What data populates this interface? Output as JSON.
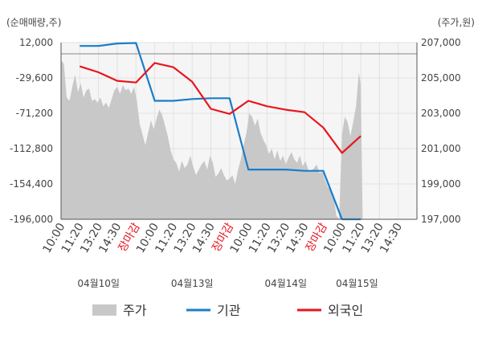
{
  "chart_data": {
    "type": "line",
    "left_axis": {
      "unit_label": "(순매매량,주)",
      "ticks": [
        12000,
        -29600,
        -71200,
        -112800,
        -154400,
        -196000
      ],
      "tick_labels": [
        "12,000",
        "-29,600",
        "-71,200",
        "-112,800",
        "-154,400",
        "-196,000"
      ],
      "range": [
        -196000,
        12000
      ]
    },
    "right_axis": {
      "unit_label": "(주가,원)",
      "ticks": [
        207000,
        205000,
        203000,
        201000,
        199000,
        197000
      ],
      "tick_labels": [
        "207,000",
        "205,000",
        "203,000",
        "201,000",
        "199,000",
        "197,000"
      ],
      "range": [
        197000,
        207000
      ]
    },
    "x_tick_labels": [
      {
        "text": "10:00",
        "pos": 0,
        "closing": false
      },
      {
        "text": "11:20",
        "pos": 1,
        "closing": false
      },
      {
        "text": "13:20",
        "pos": 2,
        "closing": false
      },
      {
        "text": "14:30",
        "pos": 3,
        "closing": false
      },
      {
        "text": "장마감",
        "pos": 4,
        "closing": true
      },
      {
        "text": "10:00",
        "pos": 5,
        "closing": false
      },
      {
        "text": "11:20",
        "pos": 6,
        "closing": false
      },
      {
        "text": "13:20",
        "pos": 7,
        "closing": false
      },
      {
        "text": "14:30",
        "pos": 8,
        "closing": false
      },
      {
        "text": "장마감",
        "pos": 9,
        "closing": true
      },
      {
        "text": "10:00",
        "pos": 10,
        "closing": false
      },
      {
        "text": "11:20",
        "pos": 11,
        "closing": false
      },
      {
        "text": "13:20",
        "pos": 12,
        "closing": false
      },
      {
        "text": "14:30",
        "pos": 13,
        "closing": false
      },
      {
        "text": "장마감",
        "pos": 14,
        "closing": true
      },
      {
        "text": "10:00",
        "pos": 15,
        "closing": false
      },
      {
        "text": "11:20",
        "pos": 16,
        "closing": false
      },
      {
        "text": "13:20",
        "pos": 17,
        "closing": false
      },
      {
        "text": "14:30",
        "pos": 18,
        "closing": false
      }
    ],
    "date_labels": [
      {
        "text": "04월10일",
        "pos": 2
      },
      {
        "text": "04월13일",
        "pos": 7
      },
      {
        "text": "04월14일",
        "pos": 12
      },
      {
        "text": "04월15일",
        "pos": 15.8
      }
    ],
    "series": [
      {
        "name": "기관",
        "axis": "left",
        "color": "#1a7dc9",
        "points": [
          [
            1,
            8000
          ],
          [
            2,
            8000
          ],
          [
            3,
            11000
          ],
          [
            4,
            11500
          ],
          [
            5,
            -56500
          ],
          [
            6,
            -56500
          ],
          [
            7,
            -54500
          ],
          [
            8,
            -53500
          ],
          [
            9,
            -53500
          ],
          [
            10,
            -137500
          ],
          [
            11,
            -137500
          ],
          [
            12,
            -137500
          ],
          [
            13,
            -139000
          ],
          [
            14,
            -139000
          ],
          [
            15,
            -196000
          ],
          [
            16,
            -196000
          ]
        ]
      },
      {
        "name": "외국인",
        "axis": "left",
        "color": "#e8161e",
        "points": [
          [
            1,
            -16000
          ],
          [
            2,
            -23000
          ],
          [
            3,
            -33000
          ],
          [
            4,
            -35000
          ],
          [
            5,
            -12000
          ],
          [
            6,
            -17000
          ],
          [
            7,
            -34000
          ],
          [
            8,
            -66000
          ],
          [
            9,
            -72000
          ],
          [
            10,
            -56500
          ],
          [
            11,
            -63000
          ],
          [
            12,
            -67000
          ],
          [
            13,
            -70000
          ],
          [
            14,
            -88000
          ],
          [
            15,
            -118000
          ],
          [
            16,
            -98000
          ]
        ]
      },
      {
        "name": "주가",
        "axis": "right",
        "type": "area",
        "color": "#c8c8c8",
        "points": [
          [
            0.0,
            206000
          ],
          [
            0.15,
            205800
          ],
          [
            0.3,
            203900
          ],
          [
            0.45,
            203700
          ],
          [
            0.6,
            204500
          ],
          [
            0.75,
            205200
          ],
          [
            0.9,
            204200
          ],
          [
            1.05,
            204700
          ],
          [
            1.2,
            203900
          ],
          [
            1.35,
            204300
          ],
          [
            1.5,
            204400
          ],
          [
            1.65,
            203700
          ],
          [
            1.8,
            203800
          ],
          [
            1.95,
            203600
          ],
          [
            2.1,
            203900
          ],
          [
            2.25,
            203400
          ],
          [
            2.4,
            203600
          ],
          [
            2.55,
            203300
          ],
          [
            2.7,
            203800
          ],
          [
            2.85,
            204300
          ],
          [
            3.0,
            204500
          ],
          [
            3.15,
            204100
          ],
          [
            3.3,
            204600
          ],
          [
            3.45,
            204300
          ],
          [
            3.6,
            204400
          ],
          [
            3.75,
            204100
          ],
          [
            3.9,
            204500
          ],
          [
            4.05,
            203700
          ],
          [
            4.2,
            202400
          ],
          [
            4.35,
            201800
          ],
          [
            4.5,
            201200
          ],
          [
            4.65,
            201900
          ],
          [
            4.8,
            202600
          ],
          [
            4.95,
            202100
          ],
          [
            5.1,
            202700
          ],
          [
            5.25,
            203200
          ],
          [
            5.4,
            202900
          ],
          [
            5.55,
            202300
          ],
          [
            5.7,
            201700
          ],
          [
            5.85,
            200900
          ],
          [
            6.0,
            200400
          ],
          [
            6.15,
            200200
          ],
          [
            6.3,
            199700
          ],
          [
            6.45,
            200300
          ],
          [
            6.6,
            199900
          ],
          [
            6.75,
            200100
          ],
          [
            6.9,
            200600
          ],
          [
            7.05,
            200000
          ],
          [
            7.2,
            199500
          ],
          [
            7.35,
            199800
          ],
          [
            7.5,
            200100
          ],
          [
            7.65,
            200300
          ],
          [
            7.8,
            199800
          ],
          [
            7.95,
            200600
          ],
          [
            8.1,
            200200
          ],
          [
            8.25,
            199400
          ],
          [
            8.4,
            199600
          ],
          [
            8.55,
            199900
          ],
          [
            8.7,
            199500
          ],
          [
            8.85,
            199200
          ],
          [
            9.0,
            199300
          ],
          [
            9.15,
            199500
          ],
          [
            9.3,
            199000
          ],
          [
            9.45,
            199800
          ],
          [
            9.6,
            200400
          ],
          [
            9.75,
            201200
          ],
          [
            9.9,
            201900
          ],
          [
            10.05,
            203000
          ],
          [
            10.2,
            202800
          ],
          [
            10.35,
            202300
          ],
          [
            10.5,
            202700
          ],
          [
            10.65,
            201900
          ],
          [
            10.8,
            201500
          ],
          [
            10.95,
            201200
          ],
          [
            11.1,
            200700
          ],
          [
            11.25,
            201000
          ],
          [
            11.4,
            200400
          ],
          [
            11.55,
            200900
          ],
          [
            11.7,
            200300
          ],
          [
            11.85,
            200600
          ],
          [
            12.0,
            200100
          ],
          [
            12.15,
            200500
          ],
          [
            12.3,
            200800
          ],
          [
            12.45,
            200400
          ],
          [
            12.6,
            200200
          ],
          [
            12.75,
            200600
          ],
          [
            12.9,
            200000
          ],
          [
            13.05,
            200300
          ],
          [
            13.2,
            199800
          ],
          [
            13.35,
            199700
          ],
          [
            13.5,
            199900
          ],
          [
            13.65,
            200100
          ],
          [
            13.8,
            199600
          ],
          [
            13.95,
            199700
          ],
          [
            14.1,
            199200
          ],
          [
            14.25,
            198800
          ],
          [
            14.4,
            198700
          ],
          [
            14.55,
            198400
          ],
          [
            14.7,
            197200
          ],
          [
            14.85,
            197000
          ],
          [
            15.0,
            201800
          ],
          [
            15.15,
            202800
          ],
          [
            15.3,
            202500
          ],
          [
            15.45,
            201700
          ],
          [
            15.6,
            202500
          ],
          [
            15.75,
            203400
          ],
          [
            15.9,
            205300
          ],
          [
            16.0,
            204600
          ],
          [
            16.1,
            197000
          ]
        ]
      }
    ],
    "legend": {
      "placement": "bottom",
      "items": [
        {
          "label": "주가",
          "kind": "area",
          "color": "#c8c8c8"
        },
        {
          "label": "기관",
          "kind": "line",
          "color": "#1a7dc9"
        },
        {
          "label": "외국인",
          "kind": "line",
          "color": "#e8161e"
        }
      ]
    },
    "closing_label_color": "#e8161e",
    "grid": true
  }
}
